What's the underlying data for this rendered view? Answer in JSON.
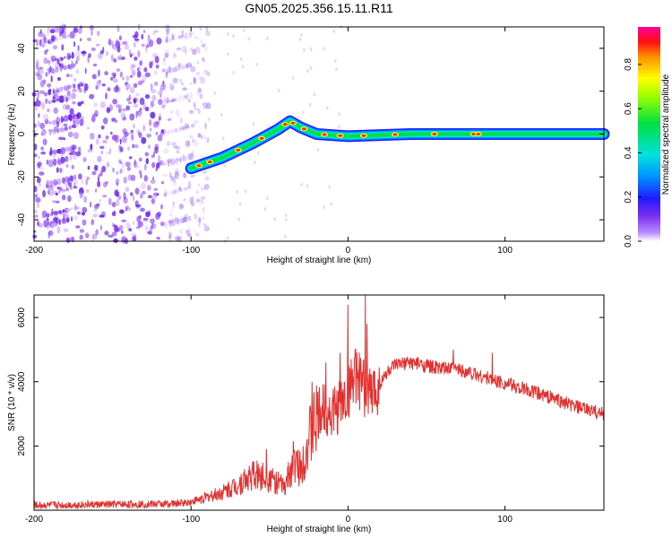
{
  "title": "GN05.2025.356.15.11.R11",
  "colors": {
    "snr_line": "#e53030",
    "noise": "#7a2cf0",
    "frame": "#000000"
  },
  "chart_data": [
    {
      "type": "heatmap",
      "name": "spectrogram",
      "xlabel": "Height of straight line (km)",
      "ylabel": "Frequency (Hz)",
      "xlim": [
        -200,
        163
      ],
      "ylim": [
        -50,
        50
      ],
      "xticks": [
        -200,
        -100,
        0,
        100
      ],
      "yticks": [
        -40,
        -20,
        0,
        20,
        40
      ],
      "colorbar": {
        "label": "Normalized spectral amplitude",
        "range": [
          0,
          0.97
        ],
        "ticks": [
          0.0,
          0.2,
          0.4,
          0.6,
          0.8
        ]
      },
      "ridge": {
        "description_points": [
          {
            "x": -100,
            "y": -16
          },
          {
            "x": -80,
            "y": -11
          },
          {
            "x": -60,
            "y": -4
          },
          {
            "x": -45,
            "y": 2
          },
          {
            "x": -37,
            "y": 6
          },
          {
            "x": -30,
            "y": 3
          },
          {
            "x": -20,
            "y": 0
          },
          {
            "x": 0,
            "y": -1
          },
          {
            "x": 40,
            "y": 0
          },
          {
            "x": 100,
            "y": 0
          },
          {
            "x": 163,
            "y": 0
          }
        ],
        "strong_points_x": [
          -95,
          -88,
          -70,
          -55,
          -40,
          -35,
          -28,
          -15,
          -5,
          10,
          30,
          55,
          80,
          83
        ]
      },
      "noise_region_x": [
        -200,
        -100
      ]
    },
    {
      "type": "line",
      "name": "snr",
      "xlabel": "Height of straight line (km)",
      "ylabel": "SNR (10 * v/v)",
      "xlim": [
        -200,
        163
      ],
      "ylim": [
        0,
        6700
      ],
      "xticks": [
        -200,
        -100,
        0,
        100
      ],
      "yticks": [
        2000,
        4000,
        6000
      ],
      "envelope": {
        "x": [
          -200,
          -150,
          -110,
          -100,
          -90,
          -80,
          -70,
          -60,
          -50,
          -40,
          -35,
          -30,
          -25,
          -20,
          -15,
          -10,
          -5,
          0,
          5,
          10,
          15,
          20,
          25,
          30,
          40,
          50,
          60,
          70,
          80,
          90,
          100,
          110,
          120,
          130,
          140,
          150,
          163
        ],
        "y": [
          150,
          180,
          200,
          260,
          400,
          550,
          800,
          1100,
          1000,
          700,
          1500,
          1300,
          2200,
          2800,
          3200,
          3000,
          3300,
          3600,
          4200,
          3800,
          3600,
          3900,
          4300,
          4500,
          4600,
          4500,
          4400,
          4400,
          4250,
          4100,
          3950,
          3800,
          3650,
          3500,
          3300,
          3150,
          3000
        ]
      },
      "spikes": [
        {
          "x": -52,
          "y": 1900
        },
        {
          "x": -38,
          "y": 1500
        },
        {
          "x": -23,
          "y": 4000
        },
        {
          "x": -14,
          "y": 4600
        },
        {
          "x": -5,
          "y": 4900
        },
        {
          "x": 0,
          "y": 6400
        },
        {
          "x": 2,
          "y": 4700
        },
        {
          "x": 11,
          "y": 6700
        },
        {
          "x": 12,
          "y": 5800
        },
        {
          "x": 67,
          "y": 5000
        },
        {
          "x": 92,
          "y": 4900
        }
      ]
    }
  ]
}
